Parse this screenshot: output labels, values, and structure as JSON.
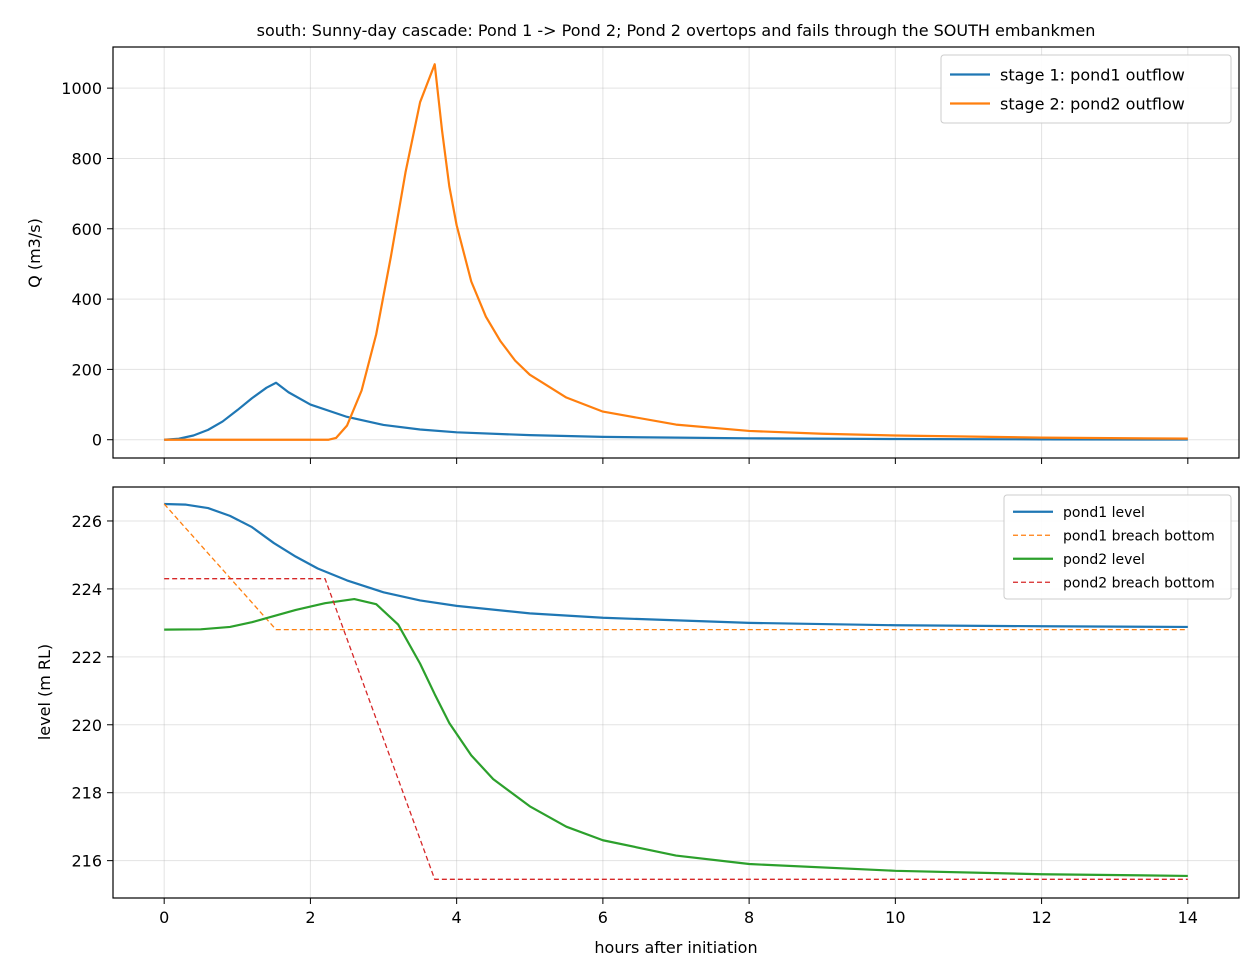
{
  "figure_title": "south: Sunny-day cascade: Pond 1 -> Pond 2; Pond 2 overtops and fails through the SOUTH embankmen",
  "xlabel": "hours after initiation",
  "chart_data": [
    {
      "type": "line",
      "title": "south: Sunny-day cascade: Pond 1 -> Pond 2; Pond 2 overtops and fails through the SOUTH embankmen",
      "xlabel": "",
      "ylabel": "Q (m3/s)",
      "xlim": [
        -0.7,
        14.7
      ],
      "ylim": [
        -52,
        1117
      ],
      "xticks": [
        0,
        2,
        4,
        6,
        8,
        10,
        12,
        14
      ],
      "yticks": [
        0,
        200,
        400,
        600,
        800,
        1000
      ],
      "grid": true,
      "legend_position": "top-right",
      "series": [
        {
          "name": "stage 1: pond1 outflow",
          "color": "#1f77b4",
          "style": "solid",
          "x": [
            0,
            0.2,
            0.4,
            0.6,
            0.8,
            1.0,
            1.2,
            1.4,
            1.53,
            1.7,
            2.0,
            2.5,
            3.0,
            3.5,
            4.0,
            5.0,
            6.0,
            7.0,
            8.0,
            10.0,
            12.0,
            14.0
          ],
          "y": [
            0,
            3,
            12,
            28,
            52,
            84,
            118,
            148,
            162,
            135,
            100,
            65,
            42,
            29,
            21,
            13,
            8,
            6,
            4,
            2,
            1,
            0.5
          ]
        },
        {
          "name": "stage 2: pond2 outflow",
          "color": "#ff7f0e",
          "style": "solid",
          "x": [
            0,
            2.25,
            2.35,
            2.5,
            2.7,
            2.9,
            3.1,
            3.3,
            3.5,
            3.7,
            3.8,
            3.9,
            4.0,
            4.2,
            4.4,
            4.6,
            4.8,
            5.0,
            5.5,
            6.0,
            7.0,
            8.0,
            9.0,
            10.0,
            12.0,
            14.0
          ],
          "y": [
            0,
            0,
            5,
            40,
            140,
            300,
            520,
            760,
            960,
            1068,
            880,
            720,
            610,
            450,
            350,
            280,
            225,
            185,
            120,
            80,
            43,
            25,
            17,
            12,
            6,
            3
          ]
        }
      ]
    },
    {
      "type": "line",
      "title": "",
      "xlabel": "hours after initiation",
      "ylabel": "level (m RL)",
      "xlim": [
        -0.7,
        14.7
      ],
      "ylim": [
        214.9,
        227.0
      ],
      "xticks": [
        0,
        2,
        4,
        6,
        8,
        10,
        12,
        14
      ],
      "yticks": [
        216,
        218,
        220,
        222,
        224,
        226
      ],
      "grid": true,
      "legend_position": "top-right",
      "series": [
        {
          "name": "pond1 level",
          "color": "#1f77b4",
          "style": "solid",
          "x": [
            0,
            0.3,
            0.6,
            0.9,
            1.2,
            1.5,
            1.8,
            2.1,
            2.5,
            3.0,
            3.5,
            4.0,
            5.0,
            6.0,
            8.0,
            10.0,
            12.0,
            14.0
          ],
          "y": [
            226.5,
            226.48,
            226.38,
            226.15,
            225.82,
            225.35,
            224.95,
            224.6,
            224.25,
            223.9,
            223.66,
            223.5,
            223.28,
            223.15,
            223.0,
            222.93,
            222.9,
            222.88
          ]
        },
        {
          "name": "pond1 breach bottom",
          "color": "#ff7f0e",
          "style": "dashed",
          "x": [
            0,
            1.53,
            14.0
          ],
          "y": [
            226.5,
            222.8,
            222.8
          ]
        },
        {
          "name": "pond2 level",
          "color": "#2ca02c",
          "style": "solid",
          "x": [
            0,
            0.5,
            0.9,
            1.2,
            1.5,
            1.8,
            2.2,
            2.6,
            2.9,
            3.2,
            3.5,
            3.7,
            3.9,
            4.2,
            4.5,
            5.0,
            5.5,
            6.0,
            7.0,
            8.0,
            10.0,
            12.0,
            14.0
          ],
          "y": [
            222.8,
            222.81,
            222.88,
            223.02,
            223.2,
            223.38,
            223.58,
            223.7,
            223.55,
            222.95,
            221.8,
            220.9,
            220.05,
            219.1,
            218.4,
            217.6,
            217.0,
            216.6,
            216.15,
            215.9,
            215.7,
            215.6,
            215.55
          ]
        },
        {
          "name": "pond2 breach bottom",
          "color": "#d62728",
          "style": "dashed",
          "x": [
            0,
            2.2,
            3.7,
            14.0
          ],
          "y": [
            224.3,
            224.3,
            215.45,
            215.45
          ]
        }
      ]
    }
  ]
}
